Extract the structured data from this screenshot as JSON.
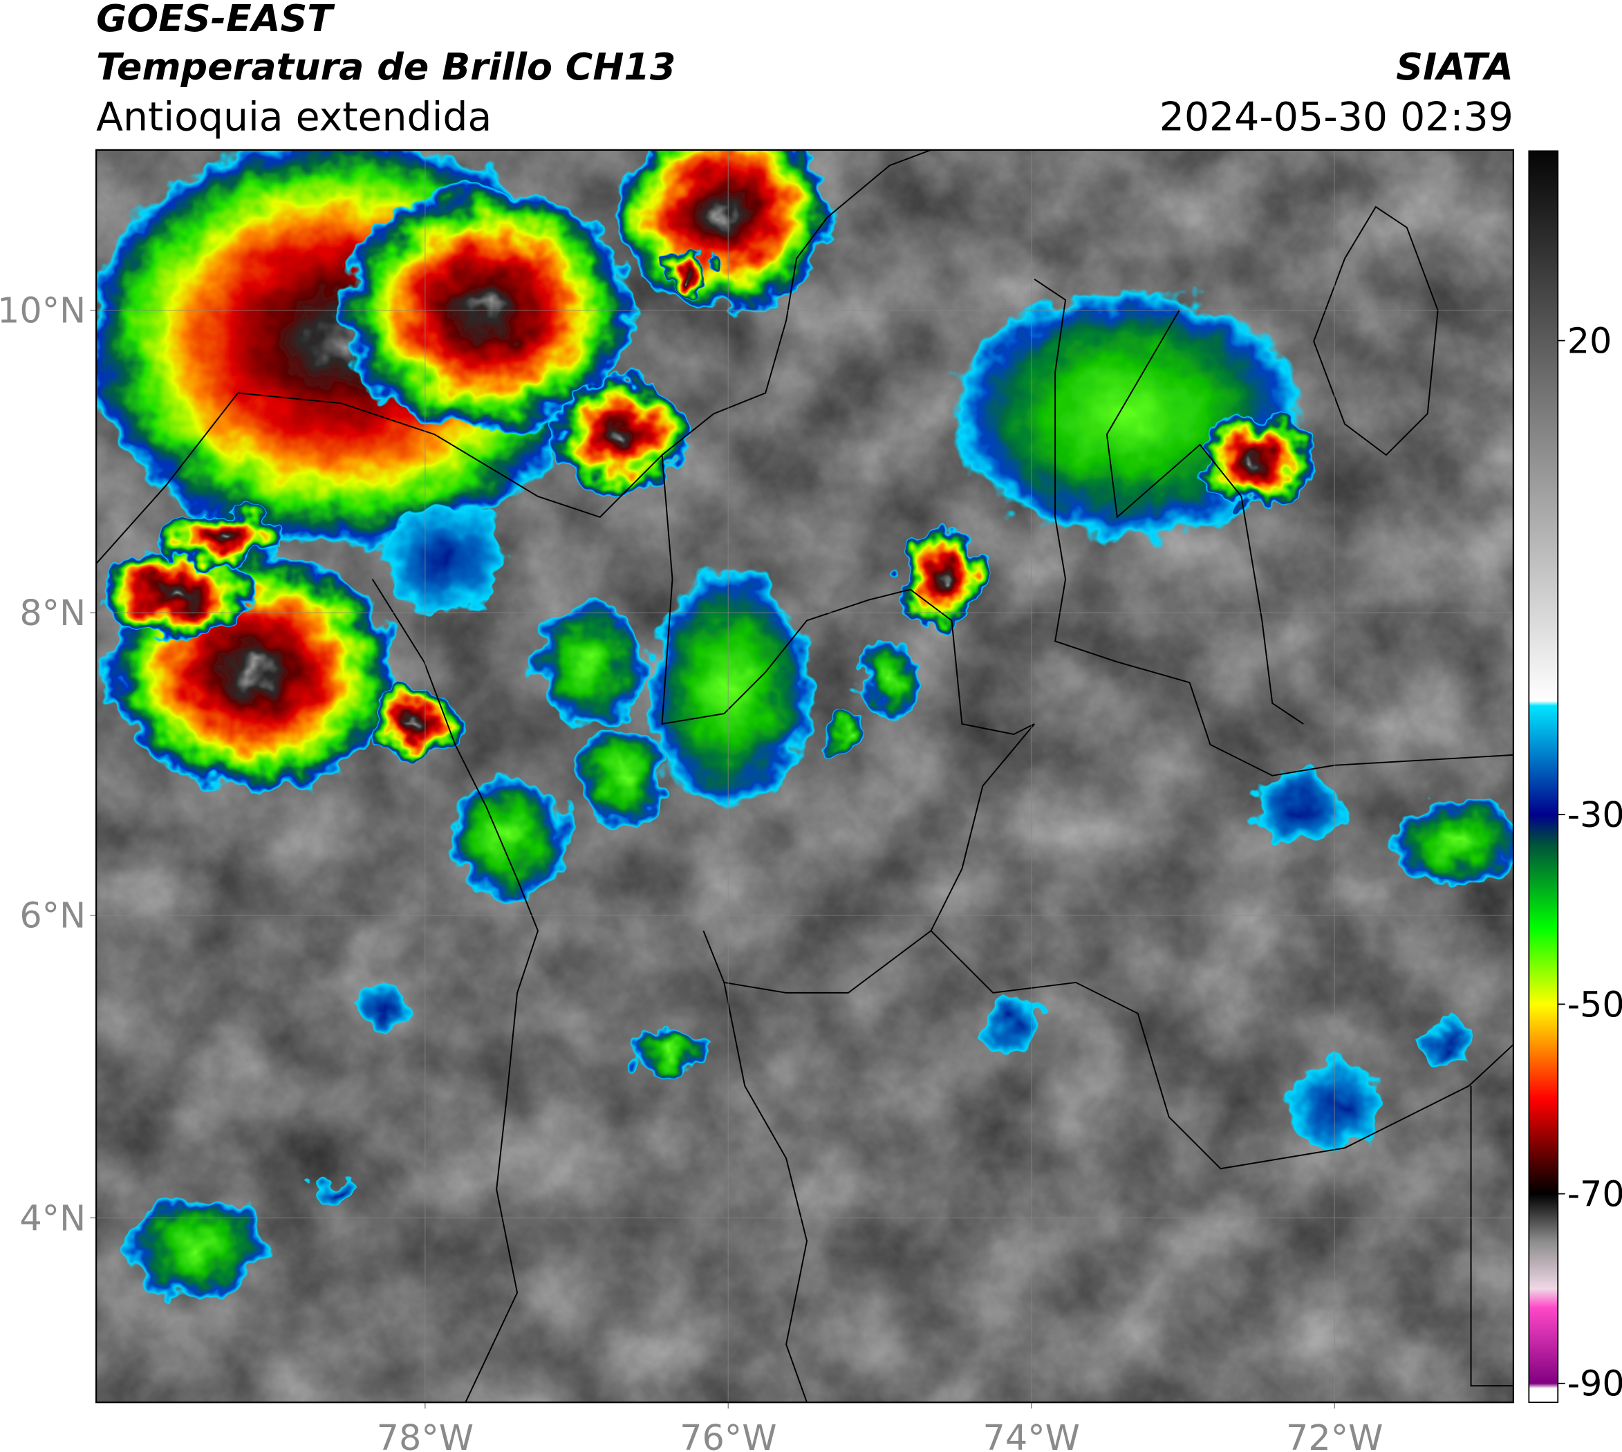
{
  "header": {
    "title": "GOES-EAST",
    "subtitle": "Temperatura de Brillo CH13",
    "region": "Antioquia extendida",
    "source": "SIATA",
    "datetime": "2024-05-30 02:39"
  },
  "map": {
    "lonlim": [
      -80.17,
      -70.82
    ],
    "latlim": [
      2.78,
      11.06
    ],
    "grid": true,
    "lonticks": [
      {
        "value": -78,
        "label": "78°W"
      },
      {
        "value": -76,
        "label": "76°W"
      },
      {
        "value": -74,
        "label": "74°W"
      },
      {
        "value": -72,
        "label": "72°W"
      }
    ],
    "latticks": [
      {
        "value": 10,
        "label": "10°N"
      },
      {
        "value": 8,
        "label": "8°N"
      },
      {
        "value": 6,
        "label": "6°N"
      },
      {
        "value": 4,
        "label": "4°N"
      }
    ]
  },
  "colorbar": {
    "lim": [
      -92,
      40
    ],
    "ticks": [
      20,
      -30,
      -50,
      -70,
      -90
    ],
    "stops": [
      [
        40,
        "#050505"
      ],
      [
        -18,
        "#ffffff"
      ],
      [
        -18.5,
        "#00e5ff"
      ],
      [
        -30,
        "#00008c"
      ],
      [
        -33,
        "#00503c"
      ],
      [
        -42,
        "#00ff00"
      ],
      [
        -50,
        "#ffff00"
      ],
      [
        -55,
        "#ff8000"
      ],
      [
        -60,
        "#ff0000"
      ],
      [
        -66,
        "#600000"
      ],
      [
        -70,
        "#000000"
      ],
      [
        -75,
        "#8c8c8c"
      ],
      [
        -80,
        "#f0d8e6"
      ],
      [
        -82,
        "#ff48c8"
      ],
      [
        -90,
        "#800080"
      ],
      [
        -90.5,
        "#ffffff"
      ],
      [
        -92,
        "#ffffff"
      ]
    ]
  }
}
